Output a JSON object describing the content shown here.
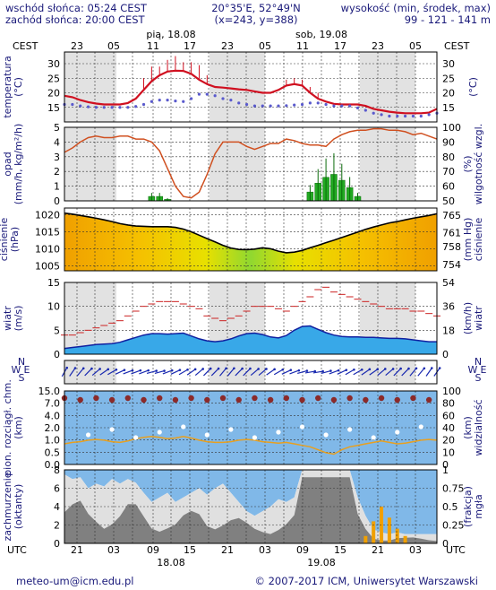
{
  "header": {
    "sunrise": "wschód słońca: 05:24 CEST",
    "sunset": "zachód słońca: 20:00 CEST",
    "coords": "20°35'E, 52°49'N",
    "grid": "(x=243, y=388)",
    "alt_label": "wysokość (min, środek, max)",
    "alt_values": "99 - 121 - 141 m"
  },
  "top_axis": {
    "tz": "CEST",
    "hours": [
      "23",
      "05",
      "11",
      "17",
      "23",
      "05",
      "11",
      "17",
      "23",
      "05"
    ],
    "days": [
      "pią, 18.08",
      "sob, 19.08"
    ]
  },
  "bottom_axis": {
    "tz": "UTC",
    "hours": [
      "21",
      "03",
      "09",
      "15",
      "21",
      "03",
      "09",
      "15",
      "21",
      "03"
    ],
    "dates": [
      "18.08",
      "19.08"
    ]
  },
  "footer": {
    "email": "meteo-um@icm.edu.pl",
    "copyright": "© 2007-2017 ICM, Uniwersytet Warszawski"
  },
  "colors": {
    "temp": "#d01020",
    "dew": "#5a5acd",
    "humidity": "#d05020",
    "precip": "#22aa22",
    "pressure_line": "#000000",
    "wind_bar": "#1f6fdb",
    "gust": "#cc2222",
    "panel_grey": "#d8d8d8",
    "panel_blue": "#80b8e8",
    "label": "#1a1a7a"
  },
  "chart_data": [
    {
      "type": "line",
      "ylabel_left": "temperatura\n(°C)",
      "ylabel_right": "(°C)",
      "ylim": [
        10,
        34
      ],
      "yticks": [
        15,
        20,
        25,
        30
      ],
      "series": [
        {
          "values": [
            19,
            18.5,
            17.5,
            16.8,
            16.3,
            16,
            16,
            16,
            16.5,
            18,
            21,
            24,
            26,
            27.3,
            27.6,
            27.5,
            26.5,
            24.5,
            23,
            22,
            21.8,
            21.5,
            21.2,
            21,
            20.5,
            20,
            20,
            21,
            22.5,
            23,
            22.5,
            20,
            18,
            17,
            16.2,
            16,
            16,
            16,
            15.5,
            14.5,
            14,
            13.5,
            13.2,
            13,
            13,
            13,
            13.2,
            14.5
          ]
        },
        {
          "values": [
            16,
            16,
            15.5,
            15.2,
            15,
            15,
            15,
            15,
            15,
            15.3,
            16,
            17,
            17.5,
            17.5,
            17.2,
            17,
            18,
            19.5,
            19.5,
            19,
            18,
            17.5,
            16.5,
            16,
            15.5,
            15.5,
            15.5,
            15.5,
            15.6,
            15.8,
            16,
            16.5,
            16.5,
            16,
            15.5,
            15.5,
            15.5,
            14.8,
            14,
            13,
            12.5,
            12,
            12,
            12,
            12,
            12,
            12.5,
            13
          ]
        }
      ],
      "annotations": "max/min temperature spikes drawn in red"
    },
    {
      "type": "bar",
      "ylabel_left": "opad\n(mm/h, kg/m²/h)",
      "ylabel_right": "(%)\nwilgotność wzgl.",
      "ylim": [
        0,
        5
      ],
      "yticks": [
        0,
        1,
        2,
        3,
        4,
        5
      ],
      "y2lim": [
        50,
        100
      ],
      "y2ticks": [
        50,
        60,
        70,
        80,
        90,
        100
      ],
      "precipitation": [
        0,
        0,
        0,
        0,
        0,
        0,
        0,
        0,
        0,
        0,
        0,
        0.3,
        0.3,
        0.1,
        0,
        0,
        0,
        0,
        0,
        0,
        0,
        0,
        0,
        0,
        0,
        0,
        0,
        0,
        0,
        0,
        0,
        0.6,
        1.2,
        1.6,
        1.8,
        1.4,
        0.9,
        0.3,
        0,
        0,
        0,
        0,
        0,
        0,
        0,
        0,
        0,
        0
      ],
      "humidity": [
        83,
        86,
        90,
        93,
        94,
        93,
        93,
        94,
        94,
        92,
        92,
        90,
        84,
        72,
        60,
        53,
        52,
        56,
        68,
        82,
        90,
        90,
        90,
        87,
        85,
        87,
        89,
        89,
        92,
        91,
        89,
        88,
        88,
        87,
        92,
        95,
        97,
        98,
        98,
        99,
        99,
        98,
        98,
        97,
        95,
        96,
        94,
        92
      ]
    },
    {
      "type": "area",
      "ylabel_left": "ciśnienie\n(hPa)",
      "ylabel_right": "(mm Hg)\nciśnienie",
      "ylim": [
        1003.5,
        1022
      ],
      "yticks": [
        1005,
        1010,
        1015,
        1020
      ],
      "y2ticks": [
        754,
        758,
        761,
        765
      ],
      "values": [
        1020.5,
        1020.2,
        1019.8,
        1019.4,
        1019,
        1018.5,
        1018,
        1017.4,
        1017,
        1016.7,
        1016.6,
        1016.5,
        1016.5,
        1016.5,
        1016.3,
        1015.8,
        1015,
        1014,
        1013,
        1012,
        1011,
        1010.2,
        1009.8,
        1009.7,
        1009.9,
        1010.3,
        1010,
        1009.3,
        1008.8,
        1009,
        1009.5,
        1010.3,
        1011,
        1011.8,
        1012.5,
        1013.3,
        1014.1,
        1014.9,
        1015.7,
        1016.4,
        1017,
        1017.6,
        1018,
        1018.5,
        1019,
        1019.4,
        1019.8,
        1020.3
      ]
    },
    {
      "type": "bar",
      "ylabel_left": "wiatr\n(m/s)",
      "ylabel_right": "(km/h)\nwiatr",
      "ylim": [
        0,
        15
      ],
      "yticks": [
        0,
        5,
        10,
        15
      ],
      "y2ticks": [
        0,
        18,
        36,
        54
      ],
      "wind": [
        1.2,
        1.4,
        1.6,
        1.8,
        2.0,
        2.1,
        2.2,
        2.5,
        3.0,
        3.5,
        4.0,
        4.3,
        4.3,
        4.2,
        4.3,
        4.4,
        3.8,
        3.2,
        2.8,
        2.6,
        2.8,
        3.2,
        3.8,
        4.3,
        4.4,
        4.1,
        3.6,
        3.4,
        3.9,
        5.0,
        5.8,
        5.9,
        5.2,
        4.5,
        4.0,
        3.7,
        3.6,
        3.6,
        3.5,
        3.5,
        3.4,
        3.3,
        3.3,
        3.2,
        3.0,
        2.8,
        2.6,
        2.6
      ],
      "gust": [
        4,
        4,
        4.5,
        5,
        5.5,
        6,
        6.5,
        7,
        8,
        9,
        10,
        10.5,
        11,
        11,
        11,
        10.5,
        10,
        9.5,
        8,
        7.5,
        7,
        7.5,
        8,
        9,
        10,
        10,
        10,
        9.5,
        9,
        10,
        11,
        12,
        13.5,
        14,
        13,
        12.5,
        12,
        11.5,
        11,
        10.5,
        10,
        9.5,
        9.5,
        9.5,
        9,
        9,
        8.5,
        8
      ]
    },
    {
      "type": "scatter",
      "ylabel_left": "N W E S",
      "wind_dir_deg": [
        210,
        215,
        220,
        225,
        230,
        235,
        240,
        245,
        250,
        250,
        250,
        255,
        255,
        250,
        245,
        240,
        235,
        230,
        225,
        225,
        220,
        220,
        225,
        225,
        230,
        230,
        235,
        240,
        245,
        250,
        255,
        260,
        260,
        255,
        250,
        245,
        240,
        240,
        235,
        235,
        230,
        230,
        225,
        225,
        220,
        220,
        215,
        215
      ]
    },
    {
      "type": "scatter",
      "ylabel_left": "pion. rozciągł. chm.\n(km)",
      "ylabel_right": "(km)\nwidzialność",
      "yticks_left": [
        0.0,
        0.5,
        1.0,
        2.0,
        4.0,
        7.0,
        15.0
      ],
      "yticks_right": [
        0,
        10,
        20,
        40,
        60,
        80,
        100
      ],
      "visibility_km": [
        28,
        30,
        31,
        33,
        34,
        33,
        31,
        30,
        32,
        35,
        37,
        38,
        37,
        35,
        36,
        38,
        36,
        33,
        31,
        30,
        30,
        31,
        33,
        34,
        33,
        31,
        30,
        29,
        30,
        28,
        26,
        24,
        20,
        16,
        14,
        20,
        24,
        26,
        28,
        30,
        32,
        30,
        28,
        29,
        31,
        33,
        34,
        33
      ]
    },
    {
      "type": "area",
      "ylabel_left": "zachmurzenie\n(oktanty)",
      "ylabel_right": "(frakcja)\nmgła",
      "ylim": [
        0,
        8
      ],
      "yticks": [
        0,
        2,
        4,
        6,
        8
      ],
      "y2ticks": [
        0,
        0.25,
        0.5,
        0.75,
        1
      ],
      "total_cloud": [
        7.5,
        7.0,
        7.2,
        6.0,
        6.5,
        6.2,
        7.0,
        6.5,
        7.0,
        6.6,
        5.5,
        4.5,
        5.0,
        5.5,
        4.5,
        5.0,
        5.5,
        6.0,
        5.3,
        6.0,
        6.5,
        5.5,
        4.5,
        3.5,
        3.0,
        3.5,
        4.0,
        4.8,
        4.5,
        5.0,
        8.0,
        8.0,
        8.0,
        8.0,
        8.0,
        8.0,
        8.0,
        5.0,
        3.0,
        1.5,
        1.2,
        1.0,
        1.2,
        1.0,
        1.0,
        1.0,
        1.0,
        1.0
      ],
      "fog_fraction": [
        0,
        0,
        0,
        0,
        0,
        0,
        0,
        0,
        0,
        0,
        0,
        0,
        0,
        0,
        0,
        0,
        0,
        0,
        0,
        0,
        0,
        0,
        0,
        0,
        0,
        0,
        0,
        0,
        0,
        0,
        0,
        0,
        0,
        0,
        0,
        0,
        0,
        0,
        0.1,
        0.3,
        0.5,
        0.35,
        0.2,
        0.1,
        0,
        0,
        0,
        0
      ]
    }
  ]
}
